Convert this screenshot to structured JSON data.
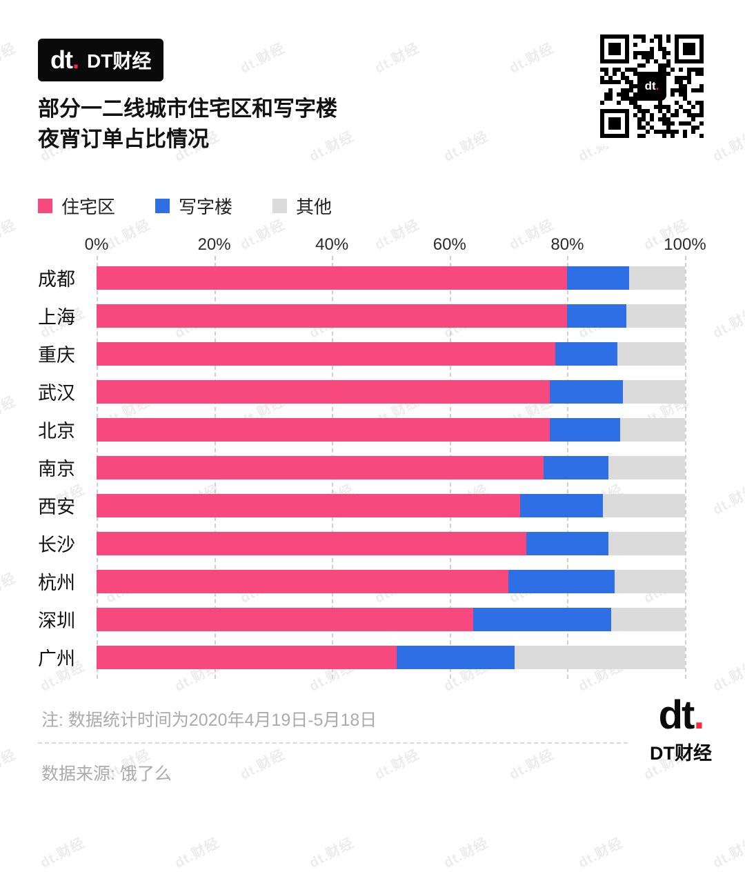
{
  "header": {
    "logo_text": "dt",
    "logo_dot": ".",
    "brand_name": "DT财经"
  },
  "title": {
    "line1": "部分一二线城市住宅区和写字楼",
    "line2": "夜宵订单占比情况"
  },
  "legend": [
    {
      "label": "住宅区",
      "color": "#f8497f"
    },
    {
      "label": "写字楼",
      "color": "#2e6fe6"
    },
    {
      "label": "其他",
      "color": "#dbdbdb"
    }
  ],
  "chart_data": {
    "type": "bar",
    "orientation": "horizontal",
    "stacked": true,
    "title": "部分一二线城市住宅区和写字楼夜宵订单占比情况",
    "categories": [
      "成都",
      "上海",
      "重庆",
      "武汉",
      "北京",
      "南京",
      "西安",
      "长沙",
      "杭州",
      "深圳",
      "广州"
    ],
    "series": [
      {
        "name": "住宅区",
        "color": "#f8497f",
        "values": [
          80,
          80,
          78,
          77,
          77,
          76,
          72,
          73,
          70,
          64,
          51
        ]
      },
      {
        "name": "写字楼",
        "color": "#2e6fe6",
        "values": [
          10.5,
          10,
          10.5,
          12.5,
          12,
          11,
          14,
          14,
          18,
          23.5,
          20
        ]
      },
      {
        "name": "其他",
        "color": "#dbdbdb",
        "values": [
          9.5,
          10,
          11.5,
          10.5,
          11,
          13,
          14,
          13,
          12,
          12.5,
          29
        ]
      }
    ],
    "x_ticks": [
      "0%",
      "20%",
      "40%",
      "60%",
      "80%",
      "100%"
    ],
    "xlim": [
      0,
      100
    ],
    "grid": "dashed-vertical",
    "legend_position": "top-left"
  },
  "footer": {
    "note": "注: 数据统计时间为2020年4月19日-5月18日",
    "source": "数据来源: 饿了么",
    "logo_text": "dt",
    "logo_dot": ".",
    "brand_name": "DT财经"
  },
  "watermark": {
    "text": "dt.财经"
  },
  "colors": {
    "brand_red": "#fa2c3a",
    "residential_pink": "#f8497f",
    "office_blue": "#2e6fe6",
    "other_gray": "#dbdbdb"
  }
}
